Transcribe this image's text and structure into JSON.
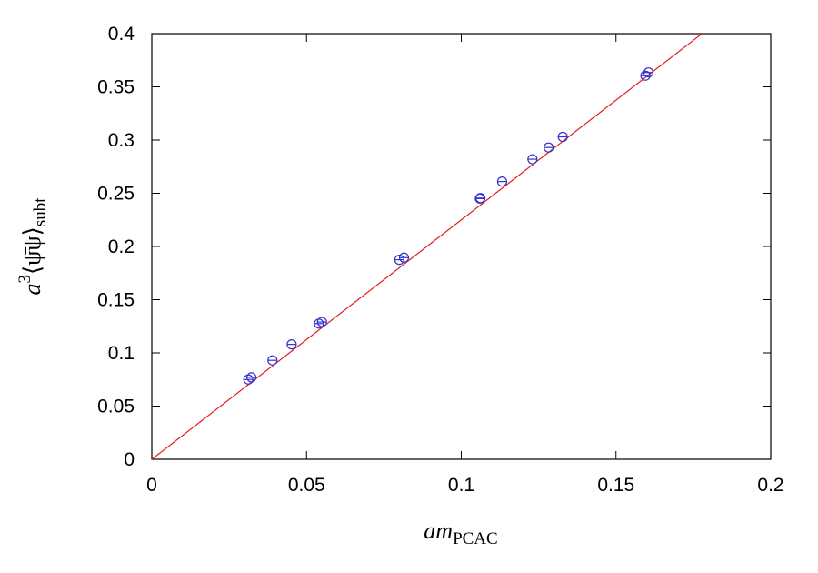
{
  "chart_data": {
    "type": "scatter",
    "title": "",
    "xlabel": "am",
    "xlabel_sub": "PCAC",
    "ylabel": "a",
    "ylabel_sup": "3",
    "ylabel_main": "⟨ψ̄ψ⟩",
    "ylabel_sub": "subt",
    "xlim": [
      0,
      0.2
    ],
    "ylim": [
      0,
      0.4
    ],
    "xticks": [
      "0",
      "0.05",
      "0.1",
      "0.15",
      "0.2"
    ],
    "yticks": [
      "0",
      "0.05",
      "0.1",
      "0.15",
      "0.2",
      "0.25",
      "0.3",
      "0.35",
      "0.4"
    ],
    "grid": false,
    "legend": "none",
    "series": [
      {
        "kind": "points",
        "color": "#3333cc",
        "x": [
          0.0312,
          0.0322,
          0.039,
          0.0452,
          0.054,
          0.055,
          0.08,
          0.0815,
          0.106,
          0.1062,
          0.1132,
          0.123,
          0.1282,
          0.1328,
          0.1595,
          0.1605
        ],
        "y": [
          0.075,
          0.077,
          0.093,
          0.108,
          0.1275,
          0.129,
          0.1875,
          0.1895,
          0.245,
          0.2455,
          0.261,
          0.282,
          0.293,
          0.303,
          0.3605,
          0.3635
        ]
      },
      {
        "kind": "fit-line",
        "color": "#e41a1c",
        "x": [
          0,
          0.2
        ],
        "y": [
          0,
          0.45
        ]
      }
    ]
  }
}
